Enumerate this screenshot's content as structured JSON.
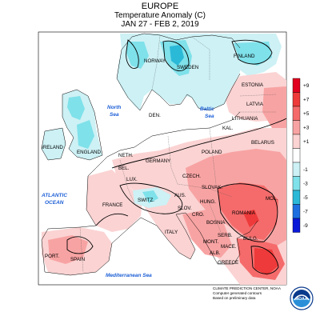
{
  "title": {
    "region": "EUROPE",
    "metric": "Temperature Anomaly (C)",
    "period": "JAN 27 - FEB 2, 2019"
  },
  "legend": {
    "bins": [
      {
        "label": "+9",
        "color": "#e1001f"
      },
      {
        "label": "+7",
        "color": "#ee3a3a"
      },
      {
        "label": "+5",
        "color": "#f56b6b"
      },
      {
        "label": "+3",
        "color": "#f8a3a3"
      },
      {
        "label": "+1",
        "color": "#fbd3d3"
      },
      {
        "label": "",
        "color": "#ffffff"
      },
      {
        "label": "-1",
        "color": "#cdf1f5"
      },
      {
        "label": "-3",
        "color": "#7fe1ea"
      },
      {
        "label": "-5",
        "color": "#2bb9d8"
      },
      {
        "label": "-7",
        "color": "#1d6fe0"
      },
      {
        "label": "-9",
        "color": "#0a18d8"
      }
    ]
  },
  "countries": {
    "norway": "NORWAY",
    "sweden": "SWEDEN",
    "finland": "FINLAND",
    "estonia": "ESTONIA",
    "latvia": "LATVIA",
    "lithuania": "LITHUANIA",
    "kal": "KAL.",
    "belarus": "BELARUS",
    "den": "DEN.",
    "ireland": "IRELAND",
    "england": "ENGLAND",
    "neth": "NETH.",
    "bel": "BEL.",
    "germany": "GERMANY",
    "poland": "POLAND",
    "czech": "CZECH.",
    "slovak": "SLOVAK.",
    "lux": "LUX.",
    "france": "FRANCE",
    "switz": "SWITZ.",
    "aus": "AUS.",
    "hung": "HUNG.",
    "slov": "SLOV.",
    "cro": "CRO.",
    "bosnia": "BOSNIA",
    "romania": "ROMANIA",
    "mol": "MOL.",
    "serb": "SERB.",
    "bulg": "BULG.",
    "mont": "MONT.",
    "mace": "MACE.",
    "alb": "ALB.",
    "greece": "GREECE",
    "italy": "ITALY",
    "spain": "SPAIN",
    "port": "PORT."
  },
  "seas": {
    "north_sea_1": "North",
    "north_sea_2": "Sea",
    "baltic_1": "Baltic",
    "baltic_2": "Sea",
    "atlantic_1": "ATLANTIC",
    "atlantic_2": "OCEAN",
    "mediterranean": "Mediterranean Sea"
  },
  "credits": {
    "line1": "CLIMATE PREDICTION CENTER, NOAA",
    "line2": "Computer generated contours",
    "line3": "Based on preliminary data"
  },
  "logo": {
    "text": "NOAA"
  }
}
